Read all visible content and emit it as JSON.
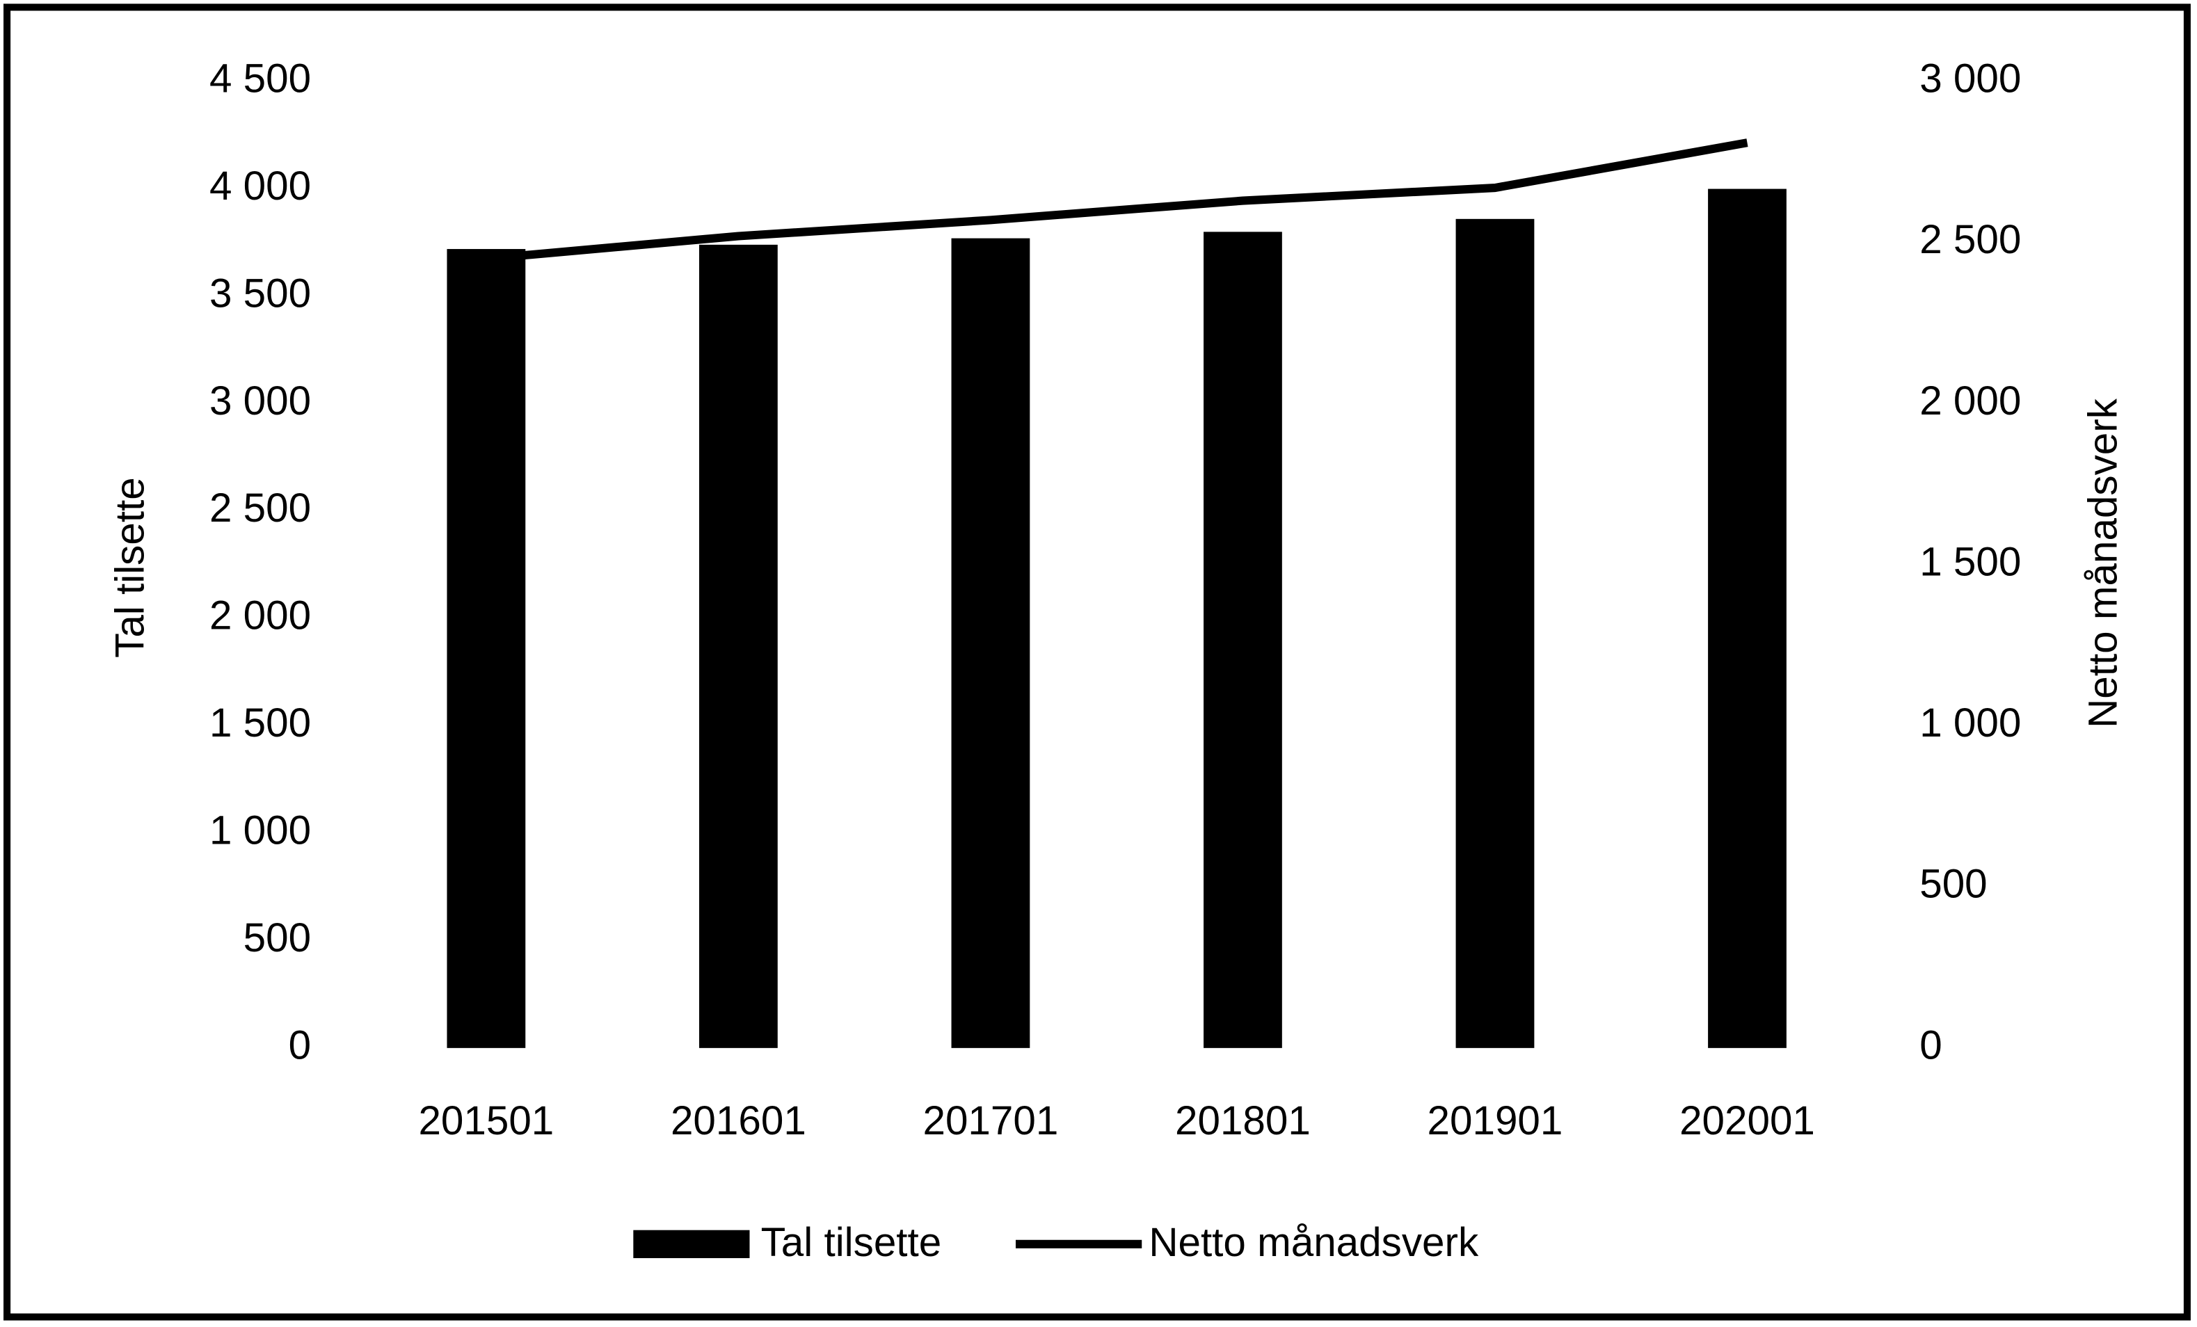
{
  "chart_data": {
    "type": "bar-line",
    "categories": [
      "201501",
      "201601",
      "201701",
      "201801",
      "201901",
      "202001"
    ],
    "series": [
      {
        "name": "Tal tilsette",
        "type": "bar",
        "color": "#000000",
        "axis": "y",
        "values": [
          3720,
          3740,
          3770,
          3800,
          3860,
          4000
        ]
      },
      {
        "name": "Netto månadsverk",
        "type": "line",
        "color": "#000000",
        "axis": "y2",
        "values": [
          2450,
          2520,
          2570,
          2630,
          2670,
          2810
        ]
      }
    ],
    "ylabel": "Tal tilsette",
    "y2label": "Netto månadsverk",
    "ylim": [
      0,
      4500
    ],
    "yticks": [
      0,
      500,
      {
        "value": 1000,
        "label": "1 000"
      },
      {
        "value": 1500,
        "label": "1 500"
      },
      {
        "value": 2000,
        "label": "2 000"
      },
      {
        "value": 2500,
        "label": "2 500"
      },
      {
        "value": 3000,
        "label": "3 000"
      },
      {
        "value": 3500,
        "label": "3 500"
      },
      {
        "value": 4000,
        "label": "4 000"
      },
      {
        "value": 4500,
        "label": "4 500"
      }
    ],
    "y2lim": [
      0,
      3000
    ],
    "y2ticks": [
      0,
      500,
      {
        "value": 1000,
        "label": "1 000"
      },
      {
        "value": 1500,
        "label": "1 500"
      },
      {
        "value": 2000,
        "label": "2 000"
      },
      {
        "value": 2500,
        "label": "2 500"
      },
      {
        "value": 3000,
        "label": "3 000"
      }
    ],
    "legend": "bottom",
    "grid": false
  }
}
